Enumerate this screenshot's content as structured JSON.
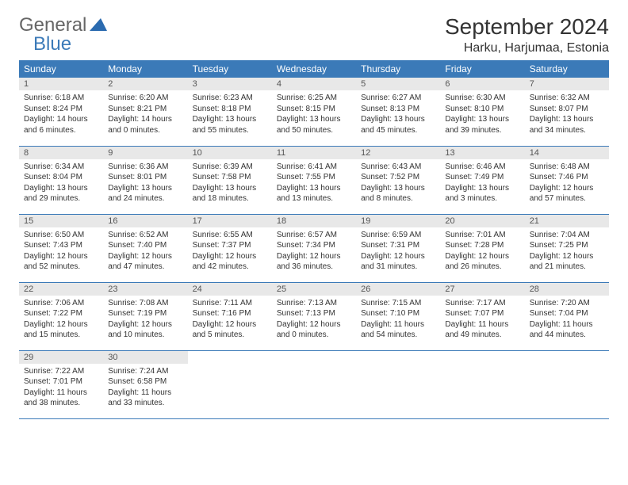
{
  "logo": {
    "text1": "General",
    "text2": "Blue"
  },
  "title": "September 2024",
  "location": "Harku, Harjumaa, Estonia",
  "colors": {
    "header_bg": "#3b7ab8",
    "header_fg": "#ffffff",
    "daynum_bg": "#e8e8e8",
    "rule": "#3b7ab8",
    "logo_gray": "#666666",
    "logo_blue": "#3b7ab8"
  },
  "day_headers": [
    "Sunday",
    "Monday",
    "Tuesday",
    "Wednesday",
    "Thursday",
    "Friday",
    "Saturday"
  ],
  "weeks": [
    [
      {
        "n": "1",
        "sr": "Sunrise: 6:18 AM",
        "ss": "Sunset: 8:24 PM",
        "dl": "Daylight: 14 hours and 6 minutes."
      },
      {
        "n": "2",
        "sr": "Sunrise: 6:20 AM",
        "ss": "Sunset: 8:21 PM",
        "dl": "Daylight: 14 hours and 0 minutes."
      },
      {
        "n": "3",
        "sr": "Sunrise: 6:23 AM",
        "ss": "Sunset: 8:18 PM",
        "dl": "Daylight: 13 hours and 55 minutes."
      },
      {
        "n": "4",
        "sr": "Sunrise: 6:25 AM",
        "ss": "Sunset: 8:15 PM",
        "dl": "Daylight: 13 hours and 50 minutes."
      },
      {
        "n": "5",
        "sr": "Sunrise: 6:27 AM",
        "ss": "Sunset: 8:13 PM",
        "dl": "Daylight: 13 hours and 45 minutes."
      },
      {
        "n": "6",
        "sr": "Sunrise: 6:30 AM",
        "ss": "Sunset: 8:10 PM",
        "dl": "Daylight: 13 hours and 39 minutes."
      },
      {
        "n": "7",
        "sr": "Sunrise: 6:32 AM",
        "ss": "Sunset: 8:07 PM",
        "dl": "Daylight: 13 hours and 34 minutes."
      }
    ],
    [
      {
        "n": "8",
        "sr": "Sunrise: 6:34 AM",
        "ss": "Sunset: 8:04 PM",
        "dl": "Daylight: 13 hours and 29 minutes."
      },
      {
        "n": "9",
        "sr": "Sunrise: 6:36 AM",
        "ss": "Sunset: 8:01 PM",
        "dl": "Daylight: 13 hours and 24 minutes."
      },
      {
        "n": "10",
        "sr": "Sunrise: 6:39 AM",
        "ss": "Sunset: 7:58 PM",
        "dl": "Daylight: 13 hours and 18 minutes."
      },
      {
        "n": "11",
        "sr": "Sunrise: 6:41 AM",
        "ss": "Sunset: 7:55 PM",
        "dl": "Daylight: 13 hours and 13 minutes."
      },
      {
        "n": "12",
        "sr": "Sunrise: 6:43 AM",
        "ss": "Sunset: 7:52 PM",
        "dl": "Daylight: 13 hours and 8 minutes."
      },
      {
        "n": "13",
        "sr": "Sunrise: 6:46 AM",
        "ss": "Sunset: 7:49 PM",
        "dl": "Daylight: 13 hours and 3 minutes."
      },
      {
        "n": "14",
        "sr": "Sunrise: 6:48 AM",
        "ss": "Sunset: 7:46 PM",
        "dl": "Daylight: 12 hours and 57 minutes."
      }
    ],
    [
      {
        "n": "15",
        "sr": "Sunrise: 6:50 AM",
        "ss": "Sunset: 7:43 PM",
        "dl": "Daylight: 12 hours and 52 minutes."
      },
      {
        "n": "16",
        "sr": "Sunrise: 6:52 AM",
        "ss": "Sunset: 7:40 PM",
        "dl": "Daylight: 12 hours and 47 minutes."
      },
      {
        "n": "17",
        "sr": "Sunrise: 6:55 AM",
        "ss": "Sunset: 7:37 PM",
        "dl": "Daylight: 12 hours and 42 minutes."
      },
      {
        "n": "18",
        "sr": "Sunrise: 6:57 AM",
        "ss": "Sunset: 7:34 PM",
        "dl": "Daylight: 12 hours and 36 minutes."
      },
      {
        "n": "19",
        "sr": "Sunrise: 6:59 AM",
        "ss": "Sunset: 7:31 PM",
        "dl": "Daylight: 12 hours and 31 minutes."
      },
      {
        "n": "20",
        "sr": "Sunrise: 7:01 AM",
        "ss": "Sunset: 7:28 PM",
        "dl": "Daylight: 12 hours and 26 minutes."
      },
      {
        "n": "21",
        "sr": "Sunrise: 7:04 AM",
        "ss": "Sunset: 7:25 PM",
        "dl": "Daylight: 12 hours and 21 minutes."
      }
    ],
    [
      {
        "n": "22",
        "sr": "Sunrise: 7:06 AM",
        "ss": "Sunset: 7:22 PM",
        "dl": "Daylight: 12 hours and 15 minutes."
      },
      {
        "n": "23",
        "sr": "Sunrise: 7:08 AM",
        "ss": "Sunset: 7:19 PM",
        "dl": "Daylight: 12 hours and 10 minutes."
      },
      {
        "n": "24",
        "sr": "Sunrise: 7:11 AM",
        "ss": "Sunset: 7:16 PM",
        "dl": "Daylight: 12 hours and 5 minutes."
      },
      {
        "n": "25",
        "sr": "Sunrise: 7:13 AM",
        "ss": "Sunset: 7:13 PM",
        "dl": "Daylight: 12 hours and 0 minutes."
      },
      {
        "n": "26",
        "sr": "Sunrise: 7:15 AM",
        "ss": "Sunset: 7:10 PM",
        "dl": "Daylight: 11 hours and 54 minutes."
      },
      {
        "n": "27",
        "sr": "Sunrise: 7:17 AM",
        "ss": "Sunset: 7:07 PM",
        "dl": "Daylight: 11 hours and 49 minutes."
      },
      {
        "n": "28",
        "sr": "Sunrise: 7:20 AM",
        "ss": "Sunset: 7:04 PM",
        "dl": "Daylight: 11 hours and 44 minutes."
      }
    ],
    [
      {
        "n": "29",
        "sr": "Sunrise: 7:22 AM",
        "ss": "Sunset: 7:01 PM",
        "dl": "Daylight: 11 hours and 38 minutes."
      },
      {
        "n": "30",
        "sr": "Sunrise: 7:24 AM",
        "ss": "Sunset: 6:58 PM",
        "dl": "Daylight: 11 hours and 33 minutes."
      },
      {
        "empty": true
      },
      {
        "empty": true
      },
      {
        "empty": true
      },
      {
        "empty": true
      },
      {
        "empty": true
      }
    ]
  ]
}
